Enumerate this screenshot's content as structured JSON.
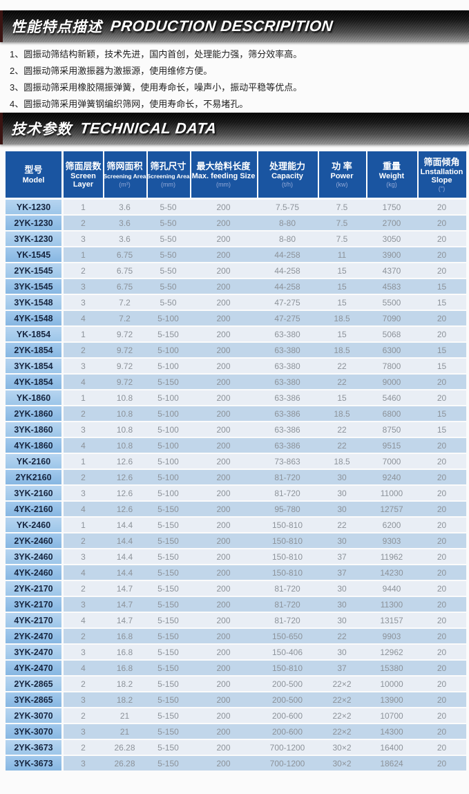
{
  "page": {
    "section1": {
      "title_zh": "性能特点描述",
      "title_en": "PRODUCTION DESCRIPITION"
    },
    "bullets": [
      "1、圆振动筛结构新颖，技术先进，国内首创，处理能力强，筛分效率高。",
      "2、圆振动筛采用激振器为激振源，使用维修方便。",
      "3、圆振动筛采用橡胶隔振弹簧，使用寿命长，噪声小，振动平稳等优点。",
      "4、圆振动筛采用弹簧钢编织筛网，使用寿命长，不易堵孔。"
    ],
    "section2": {
      "title_zh": "技术参数",
      "title_en": "TECHNICAL DATA"
    }
  },
  "table": {
    "columns": [
      {
        "zh": "型号",
        "en": "Model",
        "unit": ""
      },
      {
        "zh": "筛面层数",
        "en": "Screen Layer",
        "unit": ""
      },
      {
        "zh": "筛网面积",
        "en": "Screening Area",
        "unit": "(m³)"
      },
      {
        "zh": "筛孔尺寸",
        "en": "Screening Area",
        "unit": "(mm)"
      },
      {
        "zh": "最大给料长度",
        "en": "Max. feeding Size",
        "unit": "(mm)"
      },
      {
        "zh": "处理能力",
        "en": "Capacity",
        "unit": "(t/h)"
      },
      {
        "zh": "功 率",
        "en": "Power",
        "unit": "(kw)"
      },
      {
        "zh": "重量",
        "en": "Weight",
        "unit": "(kg)"
      },
      {
        "zh": "筛面倾角",
        "en": "Lnstallation Slope",
        "unit": "(°)"
      }
    ],
    "rows": [
      [
        "YK-1230",
        "1",
        "3.6",
        "5-50",
        "200",
        "7.5-75",
        "7.5",
        "1750",
        "20"
      ],
      [
        "2YK-1230",
        "2",
        "3.6",
        "5-50",
        "200",
        "8-80",
        "7.5",
        "2700",
        "20"
      ],
      [
        "3YK-1230",
        "3",
        "3.6",
        "5-50",
        "200",
        "8-80",
        "7.5",
        "3050",
        "20"
      ],
      [
        "YK-1545",
        "1",
        "6.75",
        "5-50",
        "200",
        "44-258",
        "11",
        "3900",
        "20"
      ],
      [
        "2YK-1545",
        "2",
        "6.75",
        "5-50",
        "200",
        "44-258",
        "15",
        "4370",
        "20"
      ],
      [
        "3YK-1545",
        "3",
        "6.75",
        "5-50",
        "200",
        "44-258",
        "15",
        "4583",
        "15"
      ],
      [
        "3YK-1548",
        "3",
        "7.2",
        "5-50",
        "200",
        "47-275",
        "15",
        "5500",
        "15"
      ],
      [
        "4YK-1548",
        "4",
        "7.2",
        "5-100",
        "200",
        "47-275",
        "18.5",
        "7090",
        "20"
      ],
      [
        "YK-1854",
        "1",
        "9.72",
        "5-150",
        "200",
        "63-380",
        "15",
        "5068",
        "20"
      ],
      [
        "2YK-1854",
        "2",
        "9.72",
        "5-100",
        "200",
        "63-380",
        "18.5",
        "6300",
        "15"
      ],
      [
        "3YK-1854",
        "3",
        "9.72",
        "5-100",
        "200",
        "63-380",
        "22",
        "7800",
        "15"
      ],
      [
        "4YK-1854",
        "4",
        "9.72",
        "5-150",
        "200",
        "63-380",
        "22",
        "9000",
        "20"
      ],
      [
        "YK-1860",
        "1",
        "10.8",
        "5-100",
        "200",
        "63-386",
        "15",
        "5460",
        "20"
      ],
      [
        "2YK-1860",
        "2",
        "10.8",
        "5-100",
        "200",
        "63-386",
        "18.5",
        "6800",
        "15"
      ],
      [
        "3YK-1860",
        "3",
        "10.8",
        "5-100",
        "200",
        "63-386",
        "22",
        "8750",
        "15"
      ],
      [
        "4YK-1860",
        "4",
        "10.8",
        "5-100",
        "200",
        "63-386",
        "22",
        "9515",
        "20"
      ],
      [
        "YK-2160",
        "1",
        "12.6",
        "5-100",
        "200",
        "73-863",
        "18.5",
        "7000",
        "20"
      ],
      [
        "2YK2160",
        "2",
        "12.6",
        "5-100",
        "200",
        "81-720",
        "30",
        "9240",
        "20"
      ],
      [
        "3YK-2160",
        "3",
        "12.6",
        "5-100",
        "200",
        "81-720",
        "30",
        "11000",
        "20"
      ],
      [
        "4YK-2160",
        "4",
        "12.6",
        "5-150",
        "200",
        "95-780",
        "30",
        "12757",
        "20"
      ],
      [
        "YK-2460",
        "1",
        "14.4",
        "5-150",
        "200",
        "150-810",
        "22",
        "6200",
        "20"
      ],
      [
        "2YK-2460",
        "2",
        "14.4",
        "5-150",
        "200",
        "150-810",
        "30",
        "9303",
        "20"
      ],
      [
        "3YK-2460",
        "3",
        "14.4",
        "5-150",
        "200",
        "150-810",
        "37",
        "11962",
        "20"
      ],
      [
        "4YK-2460",
        "4",
        "14.4",
        "5-150",
        "200",
        "150-810",
        "37",
        "14230",
        "20"
      ],
      [
        "2YK-2170",
        "2",
        "14.7",
        "5-150",
        "200",
        "81-720",
        "30",
        "9440",
        "20"
      ],
      [
        "3YK-2170",
        "3",
        "14.7",
        "5-150",
        "200",
        "81-720",
        "30",
        "11300",
        "20"
      ],
      [
        "4YK-2170",
        "4",
        "14.7",
        "5-150",
        "200",
        "81-720",
        "30",
        "13157",
        "20"
      ],
      [
        "2YK-2470",
        "2",
        "16.8",
        "5-150",
        "200",
        "150-650",
        "22",
        "9903",
        "20"
      ],
      [
        "3YK-2470",
        "3",
        "16.8",
        "5-150",
        "200",
        "150-406",
        "30",
        "12962",
        "20"
      ],
      [
        "4YK-2470",
        "4",
        "16.8",
        "5-150",
        "200",
        "150-810",
        "37",
        "15380",
        "20"
      ],
      [
        "2YK-2865",
        "2",
        "18.2",
        "5-150",
        "200",
        "200-500",
        "22×2",
        "10000",
        "20"
      ],
      [
        "3YK-2865",
        "3",
        "18.2",
        "5-150",
        "200",
        "200-500",
        "22×2",
        "13900",
        "20"
      ],
      [
        "2YK-3070",
        "2",
        "21",
        "5-150",
        "200",
        "200-600",
        "22×2",
        "10700",
        "20"
      ],
      [
        "3YK-3070",
        "3",
        "21",
        "5-150",
        "200",
        "200-600",
        "22×2",
        "14300",
        "20"
      ],
      [
        "2YK-3673",
        "2",
        "26.28",
        "5-150",
        "200",
        "700-1200",
        "30×2",
        "16400",
        "20"
      ],
      [
        "3YK-3673",
        "3",
        "26.28",
        "5-150",
        "200",
        "700-1200",
        "30×2",
        "18624",
        "20"
      ]
    ]
  },
  "colors": {
    "header_bg": "#1a55a1",
    "row_odd": "#e9eef5",
    "row_even": "#c1d6ea",
    "model_odd": "#a7cbeb",
    "model_even": "#8fbce3",
    "data_text": "#8c9299",
    "banner_dark": "#161616"
  }
}
